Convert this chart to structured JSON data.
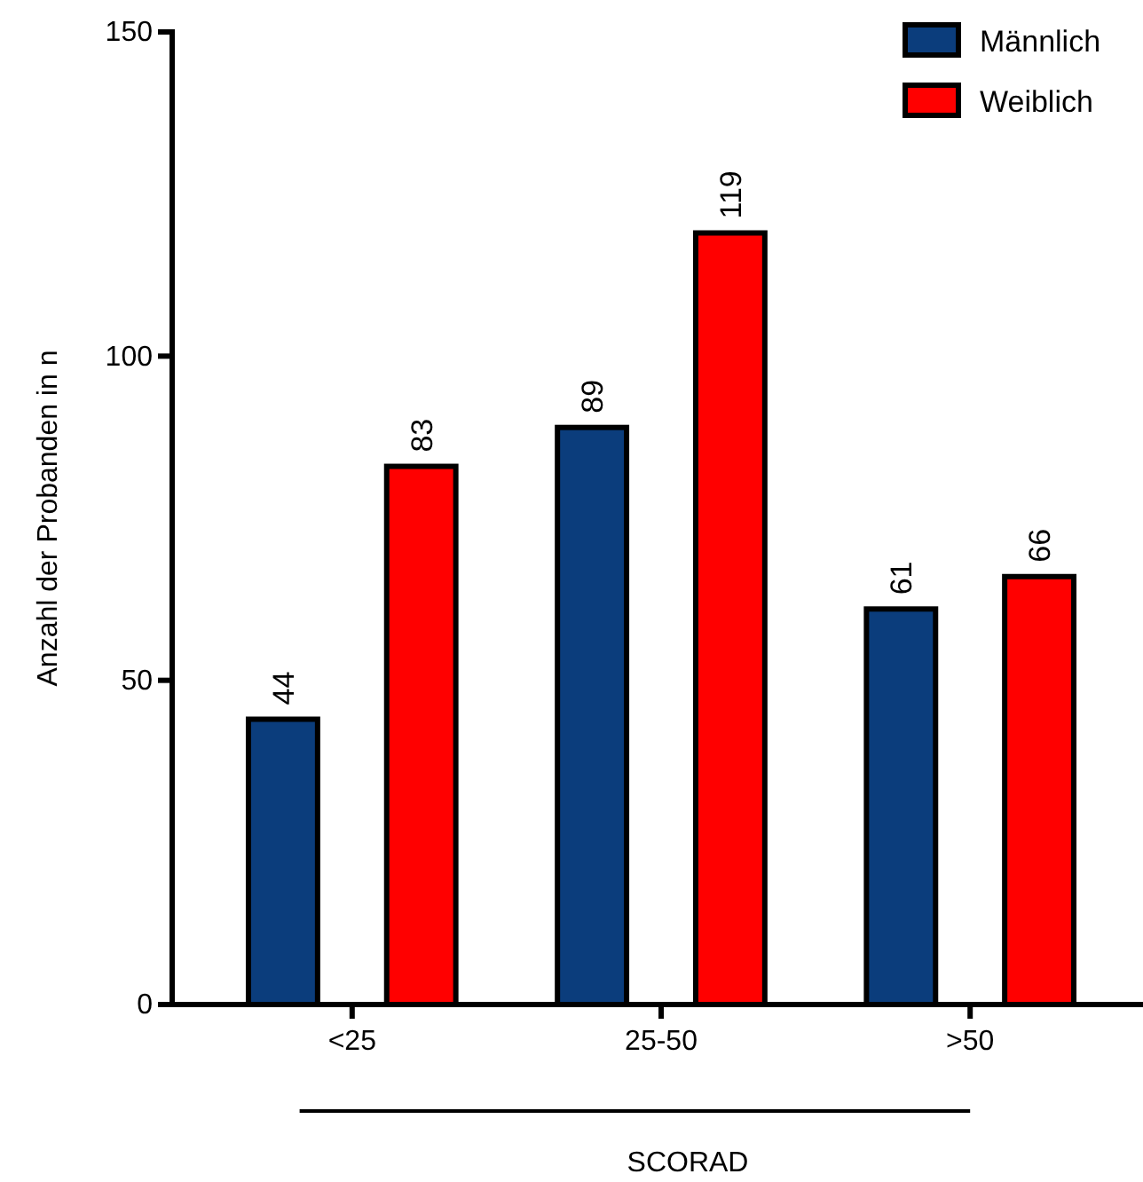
{
  "chart_data": {
    "type": "bar",
    "xlabel": "SCORAD",
    "ylabel": "Anzahl der Probanden in n",
    "categories": [
      "<25",
      "25-50",
      ">50"
    ],
    "series": [
      {
        "name": "Männlich",
        "color": "#0b3d7c",
        "values": [
          44,
          89,
          61
        ]
      },
      {
        "name": "Weiblich",
        "color": "#ff0000",
        "values": [
          83,
          119,
          66
        ]
      }
    ],
    "ylim": [
      0,
      150
    ],
    "yticks": [
      0,
      50,
      100,
      150
    ],
    "grid": false,
    "legend": "top right",
    "data_labels": true
  }
}
